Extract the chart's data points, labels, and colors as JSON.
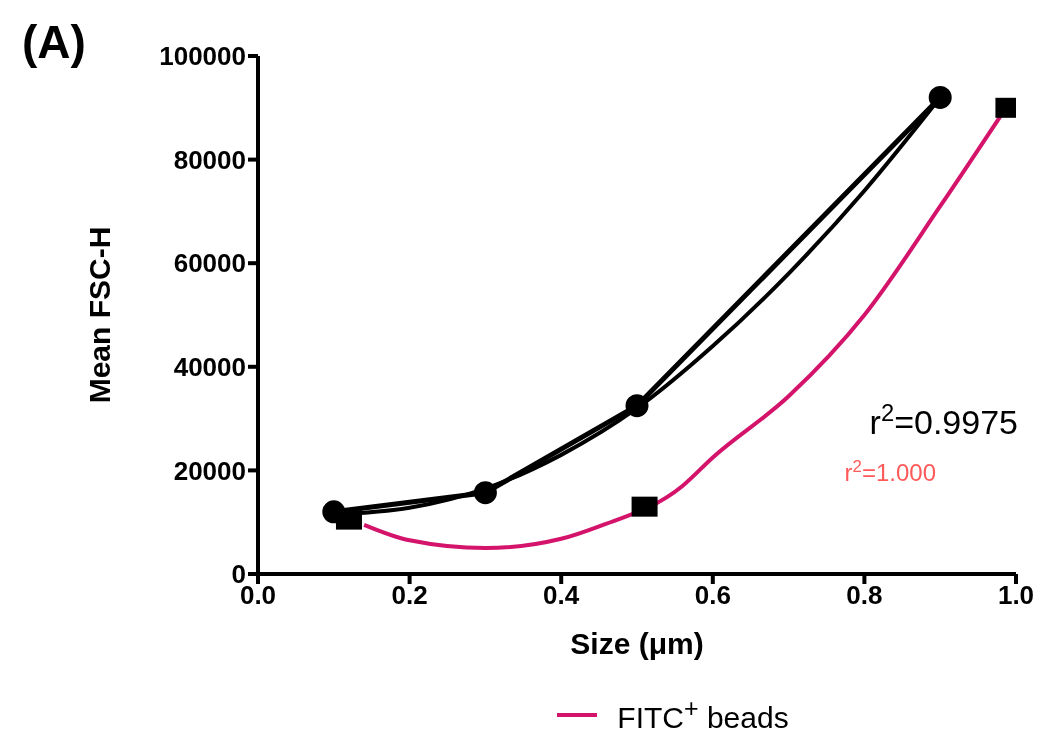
{
  "chart_data": {
    "type": "line",
    "xlabel": "Size (μm)",
    "ylabel": "Mean FSC-H",
    "xlim": [
      0,
      1
    ],
    "xticks": [
      {
        "value": 0,
        "label": "0.0"
      },
      0.2,
      0.4,
      0.6,
      0.8,
      {
        "value": 1,
        "label": "1.0"
      }
    ],
    "ylim": [
      0,
      100000
    ],
    "yticks": [
      0,
      20000,
      40000,
      60000,
      80000,
      100000
    ],
    "grid": false,
    "legend": "bottom",
    "annotations": [
      "(A)",
      "r$^{2}$=0.9975",
      "r$^{2}$=1.000"
    ],
    "series": [
      {
        "color": "#000000",
        "marker": "circle",
        "x": [
          0.1,
          0.3,
          0.5,
          0.9
        ],
        "values": [
          12000,
          15700,
          32500,
          92000
        ]
      },
      {
        "color": "#000000",
        "marker": "none",
        "x": [
          0.1,
          0.2,
          0.3,
          0.4,
          0.5,
          0.6,
          0.7,
          0.8,
          0.9
        ],
        "values": [
          11500,
          12800,
          16500,
          23000,
          32000,
          44000,
          58000,
          74000,
          92000
        ]
      },
      {
        "type": "scatter",
        "color": "#000000",
        "marker": "square",
        "x": [
          0.12,
          0.51,
          0.99
        ],
        "values": [
          10500,
          13000,
          90000
        ]
      },
      {
        "name": "FITC$^{+}$ beads",
        "color": "#d4136b",
        "marker": "none",
        "x": [
          0.14,
          0.2,
          0.3,
          0.4,
          0.45,
          0.56,
          0.6,
          0.7,
          0.8,
          0.9,
          0.98
        ],
        "values": [
          9500,
          6500,
          5000,
          6800,
          9200,
          17000,
          22500,
          34300,
          50000,
          71000,
          88500
        ]
      }
    ]
  }
}
